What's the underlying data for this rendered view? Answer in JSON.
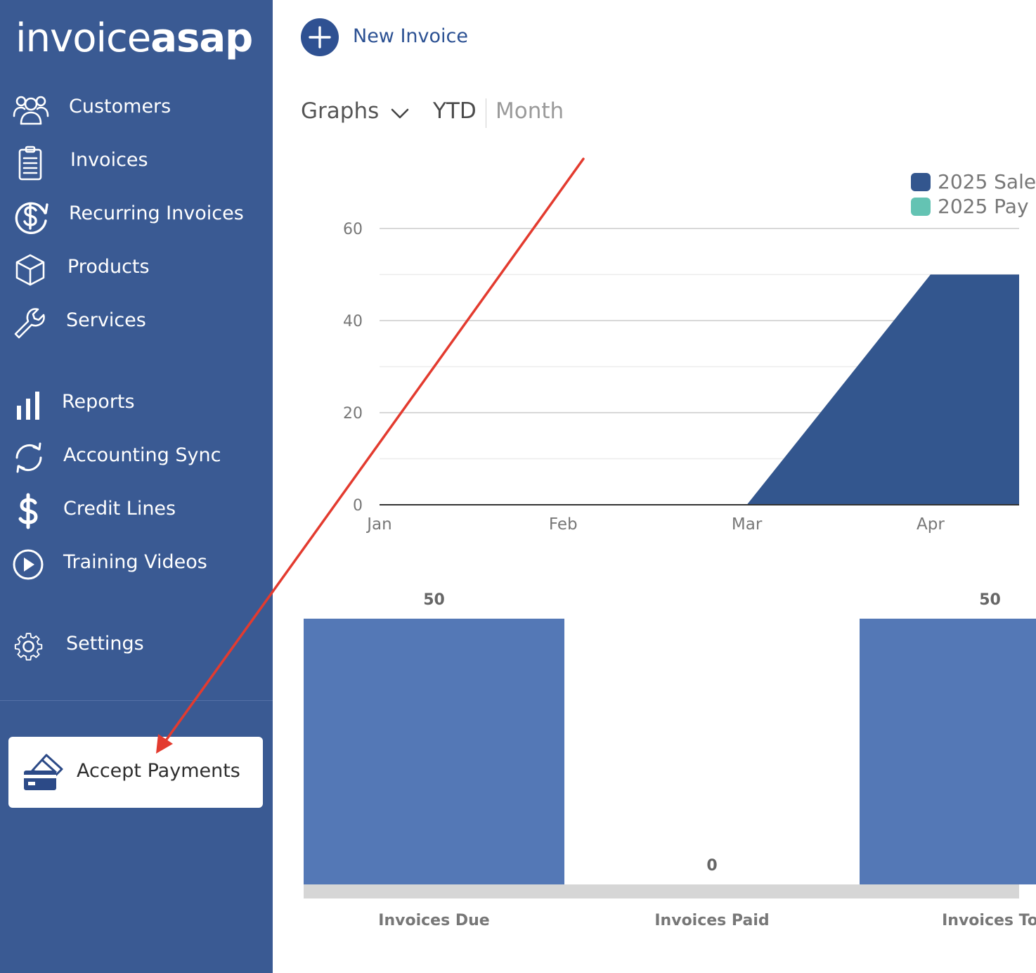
{
  "app": {
    "logo_part1": "invoice",
    "logo_part2": "asap"
  },
  "sidebar": {
    "items": [
      {
        "label": "Customers",
        "icon": "customers-icon"
      },
      {
        "label": "Invoices",
        "icon": "invoices-icon"
      },
      {
        "label": "Recurring Invoices",
        "icon": "recurring-invoices-icon"
      },
      {
        "label": "Products",
        "icon": "products-icon"
      },
      {
        "label": "Services",
        "icon": "wrench-icon"
      },
      {
        "label": "Reports",
        "icon": "bar-chart-icon"
      },
      {
        "label": "Accounting Sync",
        "icon": "sync-icon"
      },
      {
        "label": "Credit Lines",
        "icon": "dollar-icon"
      },
      {
        "label": "Training Videos",
        "icon": "play-icon"
      },
      {
        "label": "Settings",
        "icon": "gear-icon"
      }
    ],
    "accept_payments": {
      "label": "Accept Payments",
      "icon": "card-payment-icon"
    }
  },
  "header": {
    "new_invoice_label": "New Invoice"
  },
  "toolbar": {
    "graphs_label": "Graphs",
    "tab_ytd": "YTD",
    "tab_month": "Month"
  },
  "colors": {
    "sidebar_bg": "#3a5a93",
    "sales": "#33568e",
    "payments": "#64c3b3",
    "bars": "#5478b6",
    "annotation_arrow": "#e33b2f"
  },
  "chart_data": [
    {
      "type": "area",
      "categories": [
        "Jan",
        "Feb",
        "Mar",
        "Apr"
      ],
      "series": [
        {
          "name": "2025 Sale",
          "values": [
            0,
            0,
            0,
            50
          ]
        },
        {
          "name": "2025 Pay",
          "values": [
            0,
            0,
            0,
            0
          ]
        }
      ],
      "yticks": [
        0,
        20,
        40,
        60
      ],
      "ylim": [
        0,
        60
      ],
      "grid": true,
      "legend_position": "top-right"
    },
    {
      "type": "bar",
      "categories": [
        "Invoices Due",
        "Invoices Paid",
        "Invoices To"
      ],
      "values": [
        50,
        0,
        50
      ],
      "value_labels": [
        "50",
        "0",
        "50"
      ],
      "ylim": [
        0,
        50
      ]
    }
  ]
}
